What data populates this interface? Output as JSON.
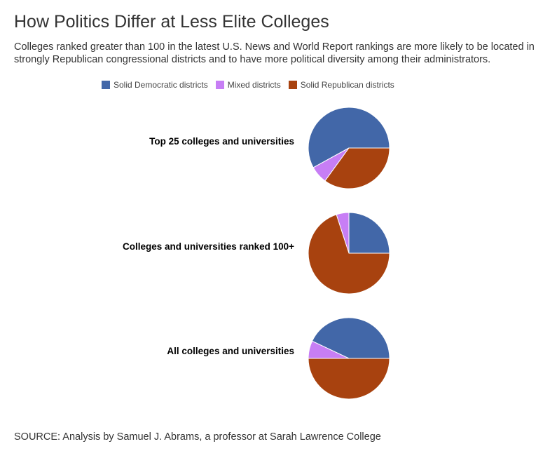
{
  "header": {
    "title": "How Politics Differ at Less Elite Colleges",
    "subtitle": "Colleges ranked greater than 100 in the latest U.S. News and World Report rankings are more likely to be located in strongly Republican congressional districts and to have more political diversity among their administrators."
  },
  "chart_data": {
    "type": "pie",
    "legend_position": "top",
    "series_names": [
      "Solid Democratic districts",
      "Mixed districts",
      "Solid Republican districts"
    ],
    "colors": [
      "#4267a8",
      "#c77ef5",
      "#a8420f"
    ],
    "pies": [
      {
        "label": "Top 25 colleges and universities",
        "values": [
          58,
          7,
          35
        ]
      },
      {
        "label": "Colleges and universities ranked 100+",
        "values": [
          25,
          5,
          70
        ]
      },
      {
        "label": "All colleges and universities",
        "values": [
          43,
          7,
          50
        ]
      }
    ]
  },
  "footer": {
    "source": "SOURCE: Analysis by Samuel J. Abrams, a professor at Sarah Lawrence College"
  }
}
